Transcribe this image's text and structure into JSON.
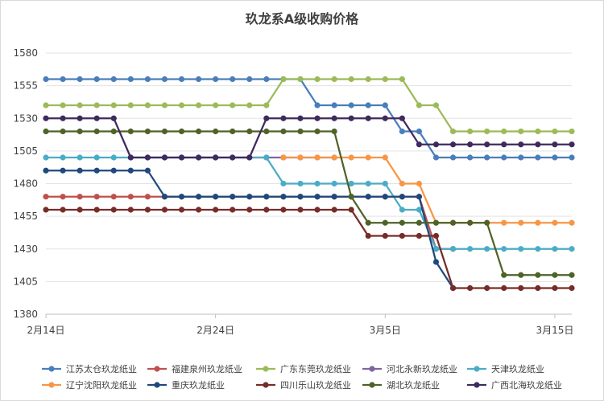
{
  "chart_data": {
    "type": "line",
    "title": "玖龙系A级收购价格",
    "xlabel": "",
    "ylabel": "",
    "ylim": [
      1380,
      1580
    ],
    "yticks": [
      1380,
      1405,
      1430,
      1455,
      1480,
      1505,
      1530,
      1555,
      1580
    ],
    "x_domain": [
      0,
      31
    ],
    "xticks": [
      {
        "x": 0,
        "label": "2月14日"
      },
      {
        "x": 10,
        "label": "2月24日"
      },
      {
        "x": 20,
        "label": "3月5日"
      },
      {
        "x": 30,
        "label": "3月15日"
      }
    ],
    "grid": "horizontal",
    "legend_position": "bottom",
    "series": [
      {
        "name": "江苏太仓玖龙纸业",
        "color": "#4a7ebb",
        "x": [
          0,
          1,
          2,
          3,
          4,
          5,
          6,
          7,
          8,
          9,
          10,
          11,
          12,
          13,
          14,
          15,
          16,
          17,
          18,
          19,
          20,
          21,
          22,
          23,
          24,
          25,
          26,
          27,
          28,
          29,
          30,
          31
        ],
        "y": [
          1560,
          1560,
          1560,
          1560,
          1560,
          1560,
          1560,
          1560,
          1560,
          1560,
          1560,
          1560,
          1560,
          1560,
          1560,
          1560,
          1540,
          1540,
          1540,
          1540,
          1540,
          1520,
          1520,
          1500,
          1500,
          1500,
          1500,
          1500,
          1500,
          1500,
          1500,
          1500
        ]
      },
      {
        "name": "福建泉州玖龙纸业",
        "color": "#c0504d",
        "x": [
          0,
          1,
          2,
          3,
          4,
          5,
          6,
          7,
          8,
          9,
          10,
          11,
          12,
          13,
          14,
          15,
          16,
          17,
          18,
          19,
          20,
          21,
          22,
          23,
          24
        ],
        "y": [
          1470,
          1470,
          1470,
          1470,
          1470,
          1470,
          1470,
          1470,
          1470,
          1470,
          1470,
          1470,
          1470,
          1470,
          1470,
          1470,
          1470,
          1470,
          1470,
          1470,
          1470,
          1470,
          1470,
          1430,
          1430
        ]
      },
      {
        "name": "广东东莞玖龙纸业",
        "color": "#9bbb59",
        "x": [
          0,
          1,
          2,
          3,
          4,
          5,
          6,
          7,
          8,
          9,
          10,
          11,
          12,
          13,
          14,
          15,
          16,
          17,
          18,
          19,
          20,
          21,
          22,
          23,
          24,
          25,
          26,
          27,
          28,
          29,
          30,
          31
        ],
        "y": [
          1540,
          1540,
          1540,
          1540,
          1540,
          1540,
          1540,
          1540,
          1540,
          1540,
          1540,
          1540,
          1540,
          1540,
          1560,
          1560,
          1560,
          1560,
          1560,
          1560,
          1560,
          1560,
          1540,
          1540,
          1520,
          1520,
          1520,
          1520,
          1520,
          1520,
          1520,
          1520
        ]
      },
      {
        "name": "河北永新玖龙纸业",
        "color": "#8064a2",
        "x": [
          5,
          6,
          7,
          8,
          9,
          10,
          11,
          12,
          13,
          14,
          15,
          16,
          17
        ],
        "y": [
          1500,
          1500,
          1500,
          1500,
          1500,
          1500,
          1500,
          1500,
          1500,
          1500,
          1500,
          1500,
          1500
        ]
      },
      {
        "name": "天津玖龙纸业",
        "color": "#4bacc6",
        "x": [
          0,
          1,
          2,
          3,
          4,
          5,
          6,
          7,
          8,
          9,
          10,
          11,
          12,
          13,
          14,
          15,
          16,
          17,
          18,
          19,
          20,
          21,
          22,
          23,
          24,
          25,
          26,
          27,
          28,
          29,
          30,
          31
        ],
        "y": [
          1500,
          1500,
          1500,
          1500,
          1500,
          1500,
          1500,
          1500,
          1500,
          1500,
          1500,
          1500,
          1500,
          1500,
          1480,
          1480,
          1480,
          1480,
          1480,
          1480,
          1480,
          1460,
          1460,
          1430,
          1430,
          1430,
          1430,
          1430,
          1430,
          1430,
          1430,
          1430
        ]
      },
      {
        "name": "辽宁沈阳玖龙纸业",
        "color": "#f79646",
        "x": [
          14,
          15,
          16,
          17,
          18,
          19,
          20,
          21,
          22,
          23,
          24,
          25,
          26,
          27,
          28,
          29,
          30,
          31
        ],
        "y": [
          1500,
          1500,
          1500,
          1500,
          1500,
          1500,
          1500,
          1480,
          1480,
          1450,
          1450,
          1450,
          1450,
          1450,
          1450,
          1450,
          1450,
          1450
        ]
      },
      {
        "name": "重庆玖龙纸业",
        "color": "#1f497d",
        "x": [
          0,
          1,
          2,
          3,
          4,
          5,
          6,
          7,
          8,
          9,
          10,
          11,
          12,
          13,
          14,
          15,
          16,
          17,
          18,
          19,
          20,
          21,
          22,
          23,
          24
        ],
        "y": [
          1490,
          1490,
          1490,
          1490,
          1490,
          1490,
          1490,
          1470,
          1470,
          1470,
          1470,
          1470,
          1470,
          1470,
          1470,
          1470,
          1470,
          1470,
          1470,
          1470,
          1470,
          1470,
          1470,
          1420,
          1400
        ]
      },
      {
        "name": "四川乐山玖龙纸业",
        "color": "#772c2a",
        "x": [
          0,
          1,
          2,
          3,
          4,
          5,
          6,
          7,
          8,
          9,
          10,
          11,
          12,
          13,
          14,
          15,
          16,
          17,
          18,
          19,
          20,
          21,
          22,
          23,
          24,
          25,
          26,
          27,
          28,
          29,
          30,
          31
        ],
        "y": [
          1460,
          1460,
          1460,
          1460,
          1460,
          1460,
          1460,
          1460,
          1460,
          1460,
          1460,
          1460,
          1460,
          1460,
          1460,
          1460,
          1460,
          1460,
          1460,
          1440,
          1440,
          1440,
          1440,
          1440,
          1400,
          1400,
          1400,
          1400,
          1400,
          1400,
          1400,
          1400
        ]
      },
      {
        "name": "湖北玖龙纸业",
        "color": "#4f6228",
        "x": [
          0,
          1,
          2,
          3,
          4,
          5,
          6,
          7,
          8,
          9,
          10,
          11,
          12,
          13,
          14,
          15,
          16,
          17,
          18,
          19,
          20,
          21,
          22,
          23,
          24,
          25,
          26,
          27,
          28,
          29,
          30,
          31
        ],
        "y": [
          1520,
          1520,
          1520,
          1520,
          1520,
          1520,
          1520,
          1520,
          1520,
          1520,
          1520,
          1520,
          1520,
          1520,
          1520,
          1520,
          1520,
          1520,
          1470,
          1450,
          1450,
          1450,
          1450,
          1450,
          1450,
          1450,
          1450,
          1410,
          1410,
          1410,
          1410,
          1410
        ]
      },
      {
        "name": "广西北海玖龙纸业",
        "color": "#3f2a5e",
        "x": [
          0,
          1,
          2,
          3,
          4,
          5,
          6,
          7,
          8,
          9,
          10,
          11,
          12,
          13,
          14,
          15,
          16,
          17,
          18,
          19,
          20,
          21,
          22,
          23,
          24,
          25,
          26,
          27,
          28,
          29,
          30,
          31
        ],
        "y": [
          1530,
          1530,
          1530,
          1530,
          1530,
          1500,
          1500,
          1500,
          1500,
          1500,
          1500,
          1500,
          1500,
          1530,
          1530,
          1530,
          1530,
          1530,
          1530,
          1530,
          1530,
          1530,
          1510,
          1510,
          1510,
          1510,
          1510,
          1510,
          1510,
          1510,
          1510,
          1510
        ]
      }
    ]
  }
}
